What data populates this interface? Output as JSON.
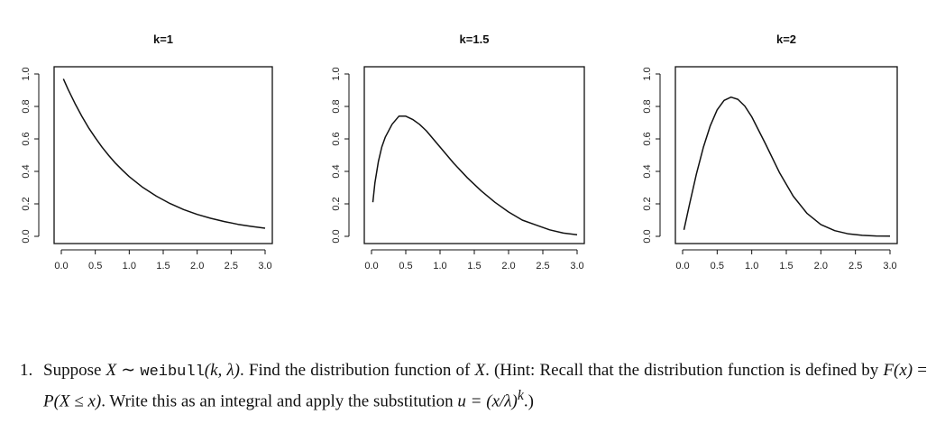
{
  "chart_data": [
    {
      "type": "line",
      "title": "k=1",
      "xlim": [
        0,
        3
      ],
      "ylim": [
        0,
        1
      ],
      "x_ticks": [
        "0.0",
        "0.5",
        "1.0",
        "1.5",
        "2.0",
        "2.5",
        "3.0"
      ],
      "y_ticks": [
        "0.0",
        "0.2",
        "0.4",
        "0.6",
        "0.8",
        "1.0"
      ],
      "x": [
        0.03,
        0.1,
        0.2,
        0.3,
        0.4,
        0.5,
        0.6,
        0.7,
        0.8,
        0.9,
        1.0,
        1.2,
        1.4,
        1.6,
        1.8,
        2.0,
        2.2,
        2.4,
        2.6,
        2.8,
        3.0
      ],
      "y": [
        0.97,
        0.905,
        0.819,
        0.741,
        0.67,
        0.607,
        0.549,
        0.497,
        0.449,
        0.407,
        0.368,
        0.301,
        0.247,
        0.202,
        0.165,
        0.135,
        0.111,
        0.091,
        0.074,
        0.061,
        0.05
      ]
    },
    {
      "type": "line",
      "title": "k=1.5",
      "xlim": [
        0,
        3
      ],
      "ylim": [
        0,
        1
      ],
      "x_ticks": [
        "0.0",
        "0.5",
        "1.0",
        "1.5",
        "2.0",
        "2.5",
        "3.0"
      ],
      "y_ticks": [
        "0.0",
        "0.2",
        "0.4",
        "0.6",
        "0.8",
        "1.0"
      ],
      "x": [
        0.02,
        0.05,
        0.1,
        0.15,
        0.2,
        0.3,
        0.4,
        0.5,
        0.6,
        0.7,
        0.8,
        1.0,
        1.2,
        1.4,
        1.6,
        1.8,
        2.0,
        2.2,
        2.4,
        2.6,
        2.8,
        3.0
      ],
      "y": [
        0.21,
        0.33,
        0.46,
        0.55,
        0.61,
        0.69,
        0.74,
        0.74,
        0.72,
        0.69,
        0.65,
        0.55,
        0.45,
        0.36,
        0.28,
        0.21,
        0.15,
        0.1,
        0.07,
        0.04,
        0.02,
        0.01
      ]
    },
    {
      "type": "line",
      "title": "k=2",
      "xlim": [
        0,
        3
      ],
      "ylim": [
        0,
        1
      ],
      "x_ticks": [
        "0.0",
        "0.5",
        "1.0",
        "1.5",
        "2.0",
        "2.5",
        "3.0"
      ],
      "y_ticks": [
        "0.0",
        "0.2",
        "0.4",
        "0.6",
        "0.8",
        "1.0"
      ],
      "x": [
        0.02,
        0.1,
        0.2,
        0.3,
        0.4,
        0.5,
        0.6,
        0.7,
        0.8,
        0.9,
        1.0,
        1.2,
        1.4,
        1.6,
        1.8,
        2.0,
        2.2,
        2.4,
        2.6,
        2.8,
        3.0
      ],
      "y": [
        0.04,
        0.198,
        0.384,
        0.548,
        0.681,
        0.779,
        0.837,
        0.857,
        0.844,
        0.802,
        0.736,
        0.569,
        0.394,
        0.247,
        0.141,
        0.073,
        0.035,
        0.015,
        0.006,
        0.002,
        0.001
      ]
    }
  ],
  "problem": {
    "number": "1.",
    "t1": "Suppose ",
    "X": "X",
    "sim": " ∼ ",
    "dist": "weibull",
    "args": "(k, λ)",
    "t2": ". Find the distribution function of ",
    "X2": "X",
    "t3": ". (Hint: Recall that the distribution function is defined by ",
    "Fx": "F(x)",
    "t4": " = ",
    "Px": "P(X ≤ x)",
    "t5": ". Write this as an integral and apply the substitution ",
    "subst": "u = (x/λ)",
    "exp": "k",
    "t6": ".)"
  }
}
